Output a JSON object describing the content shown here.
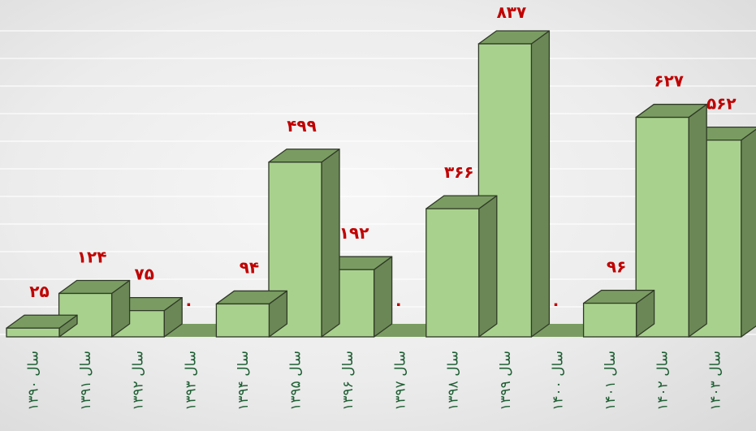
{
  "chart_data": {
    "type": "bar",
    "style": "3d-column",
    "categories": [
      "سال ۱۳۹۰",
      "سال ۱۳۹۱",
      "سال ۱۳۹۲",
      "سال ۱۳۹۳",
      "سال ۱۳۹۴",
      "سال ۱۳۹۵",
      "سال ۱۳۹۶",
      "سال ۱۳۹۷",
      "سال ۱۳۹۸",
      "سال ۱۳۹۹",
      "سال ۱۴۰۰",
      "سال ۱۴۰۱",
      "سال ۱۴۰۲",
      "سال ۱۴۰۳"
    ],
    "values": [
      25,
      124,
      75,
      0,
      94,
      499,
      192,
      0,
      366,
      837,
      0,
      96,
      627,
      562
    ],
    "value_labels": [
      "۲۵",
      "۱۲۴",
      "۷۵",
      "۰",
      "۹۴",
      "۴۹۹",
      "۱۹۲",
      "۰",
      "۳۶۶",
      "۸۳۷",
      "۰",
      "۹۶",
      "۶۲۷",
      "۵۶۲"
    ],
    "title": "",
    "xlabel": "",
    "ylabel": "",
    "ylim": [
      0,
      837
    ],
    "grid": true,
    "legend": "none",
    "colors": {
      "front": "#a9d18e",
      "side": "#6b8756",
      "top": "#7a9c62",
      "edge": "#2f3a26",
      "label": "#c00000",
      "category": "#1f5f34"
    }
  }
}
